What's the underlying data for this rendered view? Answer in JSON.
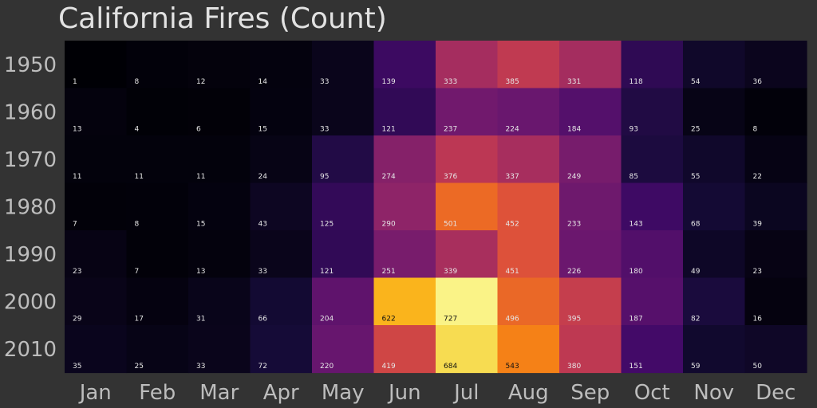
{
  "chart_data": {
    "type": "heatmap",
    "title": "California Fires (Count)",
    "xlabel": "",
    "ylabel": "",
    "x_categories": [
      "Jan",
      "Feb",
      "Mar",
      "Apr",
      "May",
      "Jun",
      "Jul",
      "Aug",
      "Sep",
      "Oct",
      "Nov",
      "Dec"
    ],
    "y_categories": [
      "1950",
      "1960",
      "1970",
      "1980",
      "1990",
      "2000",
      "2010"
    ],
    "values": [
      [
        1,
        8,
        12,
        14,
        33,
        139,
        333,
        385,
        331,
        118,
        54,
        36
      ],
      [
        13,
        4,
        6,
        15,
        33,
        121,
        237,
        224,
        184,
        93,
        25,
        8
      ],
      [
        11,
        11,
        11,
        24,
        95,
        274,
        376,
        337,
        249,
        85,
        55,
        22
      ],
      [
        7,
        8,
        15,
        43,
        125,
        290,
        501,
        452,
        233,
        143,
        68,
        39
      ],
      [
        23,
        7,
        13,
        33,
        121,
        251,
        339,
        451,
        226,
        180,
        49,
        23
      ],
      [
        29,
        17,
        31,
        66,
        204,
        622,
        727,
        496,
        395,
        187,
        82,
        16
      ],
      [
        35,
        25,
        33,
        72,
        220,
        419,
        684,
        543,
        380,
        151,
        59,
        50
      ]
    ],
    "colormap": "inferno",
    "vmin": 0,
    "vmax": 750,
    "grid": false,
    "legend": "none"
  },
  "colors": {
    "background": "#333333",
    "title": "#e2e2e2",
    "tick": "#bdbdbd",
    "label_light": "#e6e6e6",
    "label_dark": "#111111"
  }
}
